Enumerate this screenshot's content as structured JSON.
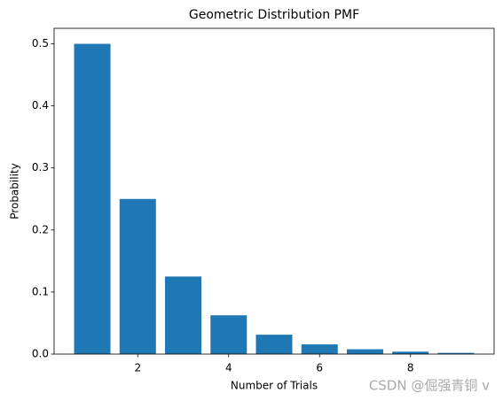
{
  "chart_data": {
    "type": "bar",
    "title": "Geometric Distribution PMF",
    "x_label": "Number of Trials",
    "y_label": "Probability",
    "x": [
      1,
      2,
      3,
      4,
      5,
      6,
      7,
      8,
      9
    ],
    "values": [
      0.5,
      0.25,
      0.125,
      0.0625,
      0.03125,
      0.015625,
      0.0078125,
      0.00390625,
      0.001953125
    ],
    "bar_width": 0.8,
    "color": "#1f77b4",
    "xlim": [
      0.16,
      9.84
    ],
    "xticks": [
      2,
      4,
      6,
      8
    ],
    "ylim": [
      0,
      0.525
    ],
    "yticks": [
      {
        "value": 0,
        "label": "0.0"
      },
      0.1,
      0.2,
      0.3,
      0.4,
      0.5
    ],
    "grid": false,
    "annotation": "CSDN @倔强青铜 v"
  }
}
